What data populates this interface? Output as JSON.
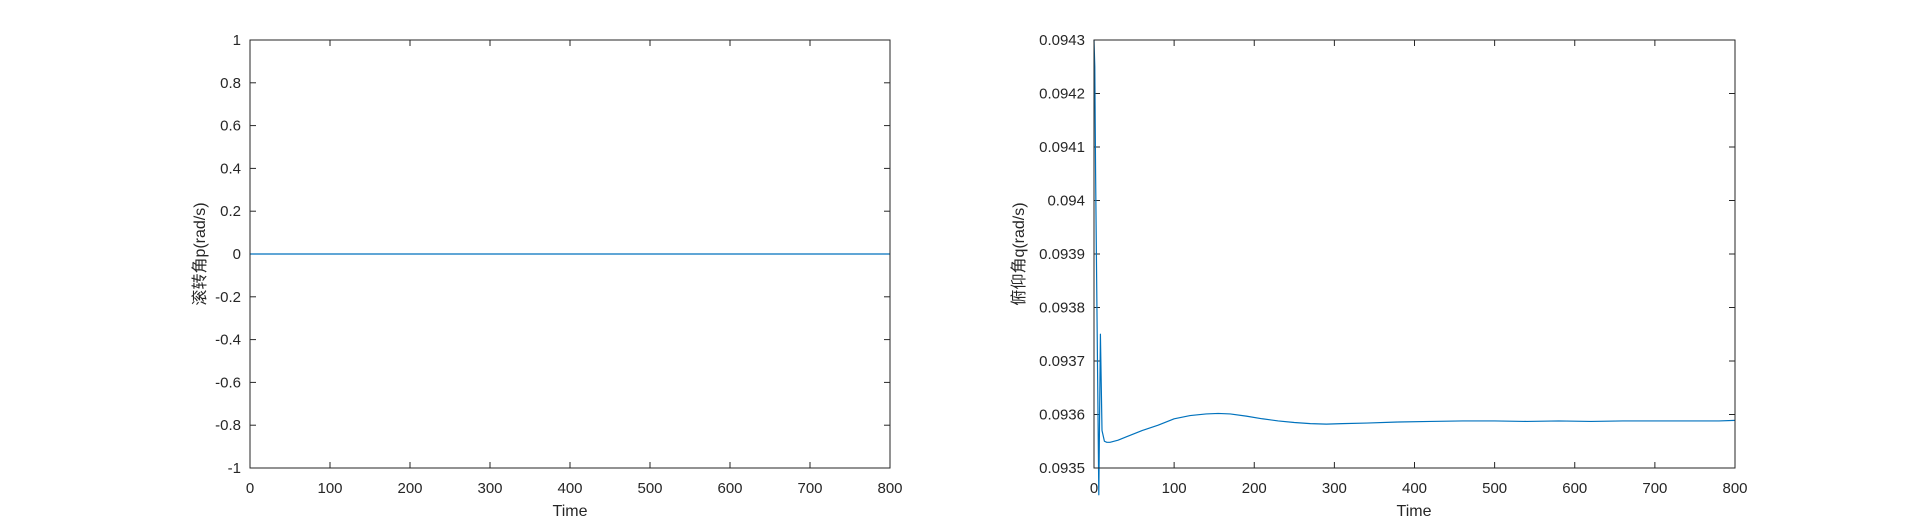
{
  "chart_data": [
    {
      "type": "line",
      "title": "",
      "xlabel": "Time",
      "ylabel": "滚转角p(rad/s)",
      "xlim": [
        0,
        800
      ],
      "ylim": [
        -1,
        1
      ],
      "xticks": [
        "0",
        "100",
        "200",
        "300",
        "400",
        "500",
        "600",
        "700",
        "800"
      ],
      "yticks": [
        "-1",
        "-0.8",
        "-0.6",
        "-0.4",
        "-0.2",
        "0",
        "0.2",
        "0.4",
        "0.6",
        "0.8",
        "1"
      ],
      "grid": false,
      "series": [
        {
          "color": "#0072BD",
          "x": [
            0,
            800
          ],
          "y": [
            0,
            0
          ]
        }
      ]
    },
    {
      "type": "line",
      "title": "",
      "xlabel": "Time",
      "ylabel": "俯仰角q(rad/s)",
      "xlim": [
        0,
        800
      ],
      "ylim": [
        0.0935,
        0.0943
      ],
      "xticks": [
        "0",
        "100",
        "200",
        "300",
        "400",
        "500",
        "600",
        "700",
        "800"
      ],
      "yticks": [
        "0.0935",
        "0.0936",
        "0.0937",
        "0.0938",
        "0.0939",
        "0.094",
        "0.0941",
        "0.0942",
        "0.0943"
      ],
      "grid": false,
      "series": [
        {
          "color": "#0072BD",
          "x": [
            0,
            1,
            2,
            4,
            6,
            8,
            10,
            13,
            16,
            20,
            30,
            40,
            60,
            80,
            100,
            120,
            140,
            155,
            170,
            190,
            210,
            230,
            250,
            270,
            290,
            310,
            340,
            380,
            420,
            460,
            500,
            540,
            580,
            620,
            660,
            700,
            740,
            780,
            800
          ],
          "y": [
            0.0943,
            0.09425,
            0.09405,
            0.09375,
            0.09345,
            0.09375,
            0.09357,
            0.09355,
            0.093548,
            0.093548,
            0.093552,
            0.093558,
            0.09357,
            0.09358,
            0.093592,
            0.093598,
            0.093601,
            0.093602,
            0.093601,
            0.093597,
            0.093592,
            0.093588,
            0.093585,
            0.093583,
            0.093582,
            0.093583,
            0.093584,
            0.093586,
            0.093587,
            0.093588,
            0.093588,
            0.093587,
            0.093588,
            0.093587,
            0.093588,
            0.093588,
            0.093588,
            0.093588,
            0.093589
          ]
        }
      ]
    }
  ]
}
